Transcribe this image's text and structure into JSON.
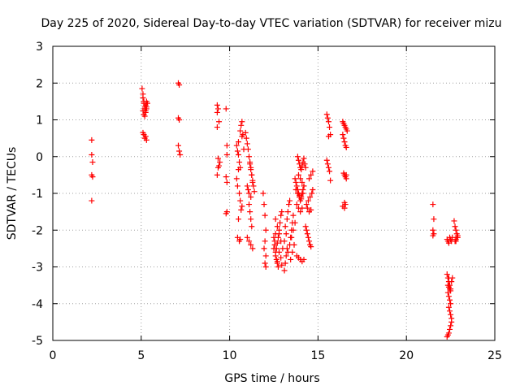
{
  "chart_data": {
    "type": "scatter",
    "title": "Day 225 of 2020, Sidereal Day-to-day VTEC variation (SDTVAR) for receiver mizu",
    "xlabel": "GPS time / hours",
    "ylabel": "SDTVAR / TECUs",
    "xlim": [
      0,
      25
    ],
    "ylim": [
      -5,
      3
    ],
    "xticks": [
      0,
      5,
      10,
      15,
      20,
      25
    ],
    "yticks": [
      -5,
      -4,
      -3,
      -2,
      -1,
      0,
      1,
      2,
      3
    ],
    "grid": true,
    "marker": "+",
    "color": "#ff0000",
    "series": [
      {
        "name": "SDTVAR",
        "x": [
          2.2,
          2.2,
          2.25,
          2.25,
          2.2,
          2.2,
          5.05,
          5.1,
          5.1,
          5.15,
          5.15,
          5.2,
          5.2,
          5.25,
          5.25,
          5.3,
          5.3,
          5.35,
          5.1,
          5.15,
          5.2,
          5.25,
          5.3,
          5.15,
          5.25,
          5.1,
          5.2,
          5.3,
          7.1,
          7.15,
          7.1,
          7.15,
          7.1,
          7.15,
          7.2,
          9.3,
          9.35,
          9.3,
          9.4,
          9.3,
          9.35,
          9.4,
          9.45,
          9.35,
          9.3,
          9.8,
          9.85,
          9.85,
          9.8,
          9.85,
          9.85,
          9.8,
          10.4,
          10.45,
          10.5,
          10.55,
          10.6,
          10.5,
          10.4,
          10.45,
          10.55,
          10.6,
          10.7,
          10.65,
          10.5,
          10.45,
          10.6,
          10.55,
          10.7,
          10.5,
          10.6,
          10.65,
          10.7,
          10.75,
          10.8,
          10.9,
          10.95,
          11.0,
          11.05,
          11.1,
          11.15,
          11.2,
          11.25,
          11.3,
          11.0,
          11.05,
          11.1,
          11.2,
          11.1,
          11.15,
          11.2,
          11.25,
          11.0,
          11.1,
          11.2,
          11.3,
          11.15,
          11.2,
          11.25,
          11.3,
          11.35,
          11.4,
          11.9,
          11.95,
          12.0,
          12.05,
          12.0,
          11.95,
          12.05,
          12.0,
          12.05,
          12.5,
          12.55,
          12.6,
          12.65,
          12.7,
          12.75,
          12.5,
          12.6,
          12.7,
          12.55,
          12.65,
          12.75,
          12.8,
          12.85,
          12.9,
          12.6,
          12.7,
          12.8,
          12.9,
          12.95,
          12.6,
          12.7,
          12.8,
          12.9,
          13.0,
          12.95,
          13.1,
          13.15,
          13.2,
          13.25,
          13.1,
          13.2,
          13.15,
          13.25,
          13.3,
          13.35,
          13.4,
          13.3,
          13.4,
          13.45,
          13.5,
          13.55,
          13.6,
          13.45,
          13.55,
          13.65,
          13.5,
          13.6,
          13.7,
          13.7,
          13.75,
          13.8,
          13.85,
          13.9,
          13.95,
          14.0,
          14.05,
          14.1,
          14.15,
          14.2,
          13.8,
          13.9,
          14.0,
          14.1,
          13.75,
          13.85,
          13.95,
          14.05,
          14.15,
          13.8,
          13.9,
          14.0,
          14.1,
          14.2,
          13.85,
          13.9,
          13.95,
          14.0,
          14.05,
          14.1,
          14.15,
          14.2,
          14.25,
          14.3,
          13.9,
          14.0,
          14.1,
          14.2,
          14.3,
          14.35,
          14.4,
          14.45,
          14.5,
          14.55,
          14.6,
          14.4,
          14.5,
          14.6,
          14.35,
          14.45,
          14.55,
          14.65,
          14.7,
          14.5,
          14.6,
          14.7,
          15.5,
          15.55,
          15.6,
          15.65,
          15.7,
          15.5,
          15.55,
          15.6,
          15.65,
          15.7,
          15.6,
          16.4,
          16.45,
          16.5,
          16.55,
          16.6,
          16.65,
          16.4,
          16.45,
          16.5,
          16.55,
          16.6,
          16.45,
          16.5,
          16.55,
          16.6,
          16.5,
          16.55,
          16.4,
          16.5,
          16.6,
          21.5,
          21.55,
          21.5,
          21.55,
          21.5,
          22.3,
          22.35,
          22.4,
          22.45,
          22.5,
          22.55,
          22.6,
          22.3,
          22.35,
          22.4,
          22.45,
          22.5,
          22.55,
          22.6,
          22.35,
          22.4,
          22.45,
          22.5,
          22.4,
          22.45,
          22.5,
          22.55,
          22.3,
          22.35,
          22.4,
          22.45,
          22.5,
          22.55,
          22.35,
          22.4,
          22.45,
          22.5,
          22.4,
          22.7,
          22.75,
          22.8,
          22.85,
          22.9,
          22.75,
          22.8,
          22.85,
          22.9,
          22.8
        ],
        "y": [
          0.45,
          0.05,
          -0.15,
          -0.55,
          -1.2,
          -0.5,
          1.85,
          1.7,
          1.6,
          1.5,
          1.45,
          1.35,
          1.3,
          1.25,
          1.4,
          1.3,
          1.5,
          1.45,
          1.25,
          1.15,
          1.1,
          1.2,
          1.35,
          0.6,
          0.55,
          0.65,
          0.5,
          0.45,
          2.0,
          1.95,
          1.05,
          1.0,
          0.3,
          0.15,
          0.05,
          1.4,
          1.3,
          1.2,
          0.95,
          0.8,
          -0.05,
          -0.25,
          -0.15,
          -0.3,
          -0.5,
          1.3,
          0.3,
          0.05,
          -0.55,
          -0.7,
          -1.5,
          -1.55,
          0.3,
          0.15,
          0.05,
          -0.15,
          -0.3,
          -0.35,
          -0.6,
          -0.8,
          -1.0,
          -1.2,
          -1.35,
          -1.45,
          -1.7,
          -2.2,
          -2.25,
          -2.3,
          0.55,
          0.4,
          0.7,
          0.85,
          0.95,
          0.6,
          0.2,
          0.65,
          0.5,
          0.35,
          0.2,
          0.0,
          -0.15,
          -0.3,
          -0.5,
          -0.7,
          -0.8,
          -0.9,
          -1.0,
          -1.1,
          -1.3,
          -1.5,
          -1.7,
          -1.9,
          -2.2,
          -2.3,
          -2.4,
          -2.5,
          -0.2,
          -0.35,
          -0.5,
          -0.65,
          -0.8,
          -0.95,
          -1.0,
          -1.3,
          -1.6,
          -2.0,
          -2.3,
          -2.5,
          -2.7,
          -2.9,
          -3.0,
          -2.2,
          -2.4,
          -2.6,
          -2.8,
          -2.9,
          -3.0,
          -2.5,
          -2.7,
          -2.85,
          -2.3,
          -2.5,
          -2.2,
          -2.0,
          -1.8,
          -1.6,
          -2.1,
          -2.35,
          -2.6,
          -2.75,
          -2.95,
          -1.7,
          -1.9,
          -2.1,
          -2.3,
          -2.5,
          -1.5,
          -3.1,
          -2.9,
          -2.7,
          -2.5,
          -2.3,
          -2.1,
          -1.9,
          -1.7,
          -1.5,
          -1.3,
          -1.2,
          -2.6,
          -2.4,
          -2.2,
          -2.0,
          -1.8,
          -1.6,
          -2.8,
          -2.6,
          -2.4,
          -2.2,
          -2.0,
          -1.8,
          -0.6,
          -0.7,
          -0.8,
          -0.9,
          -1.0,
          -1.1,
          -1.2,
          -1.1,
          -1.0,
          -0.9,
          -0.8,
          -1.3,
          -1.4,
          -1.5,
          -1.4,
          -0.9,
          -1.0,
          -1.05,
          -1.15,
          -1.0,
          -2.7,
          -2.75,
          -2.8,
          -2.85,
          -2.8,
          0.0,
          -0.1,
          -0.2,
          -0.3,
          -0.35,
          -0.25,
          -0.15,
          -0.05,
          -0.2,
          -0.3,
          -0.5,
          -0.6,
          -0.7,
          -0.8,
          -1.9,
          -2.0,
          -2.1,
          -2.2,
          -2.3,
          -2.4,
          -2.45,
          -1.4,
          -1.5,
          -1.45,
          -1.3,
          -1.2,
          -1.1,
          -1.0,
          -0.9,
          -0.6,
          -0.5,
          -0.4,
          1.15,
          1.05,
          0.95,
          0.8,
          0.6,
          -0.1,
          -0.2,
          -0.3,
          -0.4,
          -0.65,
          0.55,
          0.95,
          0.9,
          0.85,
          0.8,
          0.75,
          0.7,
          0.6,
          0.5,
          0.4,
          0.3,
          0.25,
          -0.45,
          -0.5,
          -0.55,
          -0.6,
          -1.25,
          -1.3,
          -1.35,
          -1.4,
          -0.5,
          -1.3,
          -1.7,
          -2.0,
          -2.1,
          -2.15,
          -2.25,
          -2.3,
          -2.35,
          -2.2,
          -2.25,
          -2.3,
          -2.2,
          -3.2,
          -3.3,
          -3.4,
          -3.5,
          -3.6,
          -3.4,
          -3.3,
          -3.7,
          -3.8,
          -3.9,
          -4.0,
          -4.1,
          -4.2,
          -4.3,
          -4.4,
          -4.9,
          -4.85,
          -4.8,
          -4.7,
          -4.6,
          -4.5,
          -3.5,
          -3.55,
          -3.6,
          -3.65,
          -3.3,
          -1.75,
          -1.9,
          -2.0,
          -2.1,
          -2.2,
          -2.3,
          -2.25,
          -2.2,
          -2.15,
          -2.3
        ]
      }
    ]
  }
}
